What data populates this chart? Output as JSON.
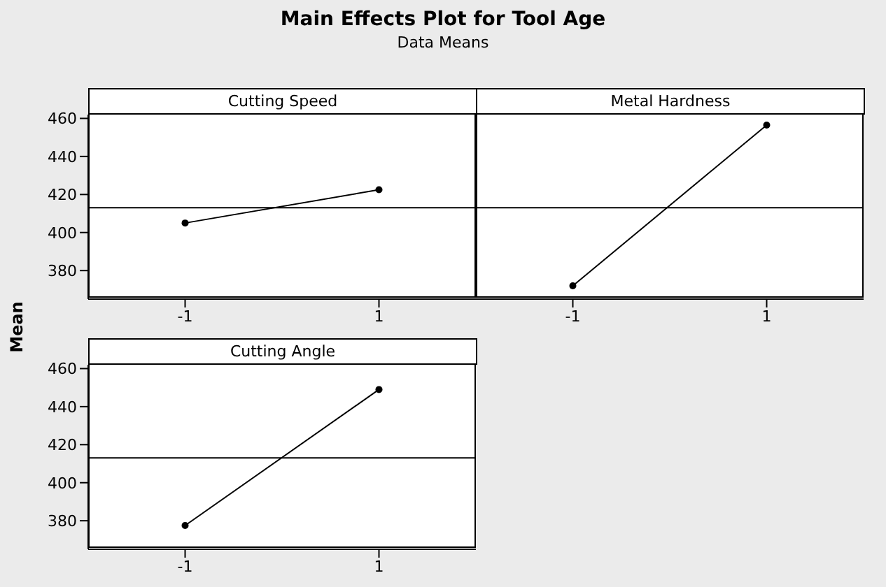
{
  "chart_data": [
    {
      "type": "other",
      "title": "Main Effects Plot for Tool Age",
      "subtitle": "Data Means"
    },
    {
      "type": "line",
      "title": "Cutting Speed",
      "ylabel": "Mean",
      "categories": [
        "-1",
        "1"
      ],
      "values": [
        405,
        422.5
      ],
      "color": "#000000",
      "marker": "circle",
      "ylim": [
        365,
        462
      ],
      "yticks": [
        380,
        400,
        420,
        440,
        460
      ],
      "ref_lines": [
        {
          "axis": "y",
          "value": 413,
          "color": "#000000"
        }
      ]
    },
    {
      "type": "line",
      "title": "Metal Hardness",
      "categories": [
        "-1",
        "1"
      ],
      "values": [
        372,
        456.5
      ],
      "color": "#000000",
      "marker": "circle",
      "ylim": [
        365,
        462
      ],
      "tick_labels": "x",
      "ref_lines": [
        {
          "axis": "y",
          "value": 413,
          "color": "#000000"
        }
      ]
    },
    {
      "type": "line",
      "title": "Cutting Angle",
      "categories": [
        "-1",
        "1"
      ],
      "values": [
        377.5,
        449
      ],
      "color": "#000000",
      "marker": "circle",
      "ylim": [
        365,
        462
      ],
      "yticks": [
        380,
        400,
        420,
        440,
        460
      ],
      "ref_lines": [
        {
          "axis": "y",
          "value": 413,
          "color": "#000000"
        }
      ]
    }
  ]
}
